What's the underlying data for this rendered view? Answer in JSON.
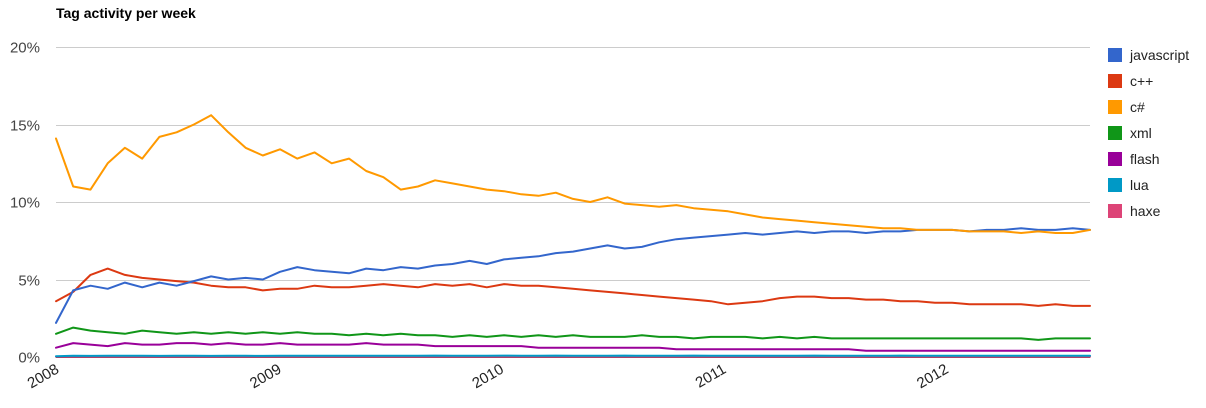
{
  "chart_data": {
    "type": "line",
    "title": "Tag activity per week",
    "xlabel": "",
    "ylabel": "",
    "x_start": "2008",
    "x_end": "2012.65",
    "xlim": [
      "2008",
      "2012.65"
    ],
    "ylim": [
      0,
      20
    ],
    "y_ticks": [
      0,
      5,
      10,
      15,
      20
    ],
    "y_tick_labels": [
      "0%",
      "5%",
      "10%",
      "15%",
      "20%"
    ],
    "x_ticks": [
      "2008",
      "2009",
      "2010",
      "2011",
      "2012"
    ],
    "x_tick_labels": [
      "2008",
      "2009",
      "2010",
      "2011",
      "2012"
    ],
    "grid": true,
    "legend_position": "right",
    "sample_step_weeks": 4,
    "series": [
      {
        "name": "javascript",
        "color": "#3366cc",
        "values": [
          2.2,
          4.3,
          4.6,
          4.4,
          4.8,
          4.5,
          4.8,
          4.6,
          4.9,
          5.2,
          5.0,
          5.1,
          5.0,
          5.5,
          5.8,
          5.6,
          5.5,
          5.4,
          5.7,
          5.6,
          5.8,
          5.7,
          5.9,
          6.0,
          6.2,
          6.0,
          6.3,
          6.4,
          6.5,
          6.7,
          6.8,
          7.0,
          7.2,
          7.0,
          7.1,
          7.4,
          7.6,
          7.7,
          7.8,
          7.9,
          8.0,
          7.9,
          8.0,
          8.1,
          8.0,
          8.1,
          8.1,
          8.0,
          8.1,
          8.1,
          8.2,
          8.2,
          8.2,
          8.1,
          8.2,
          8.2,
          8.3,
          8.2,
          8.2,
          8.3,
          8.2
        ]
      },
      {
        "name": "c++",
        "color": "#dc3912",
        "values": [
          3.6,
          4.2,
          5.3,
          5.7,
          5.3,
          5.1,
          5.0,
          4.9,
          4.8,
          4.6,
          4.5,
          4.5,
          4.3,
          4.4,
          4.4,
          4.6,
          4.5,
          4.5,
          4.6,
          4.7,
          4.6,
          4.5,
          4.7,
          4.6,
          4.7,
          4.5,
          4.7,
          4.6,
          4.6,
          4.5,
          4.4,
          4.3,
          4.2,
          4.1,
          4.0,
          3.9,
          3.8,
          3.7,
          3.6,
          3.4,
          3.5,
          3.6,
          3.8,
          3.9,
          3.9,
          3.8,
          3.8,
          3.7,
          3.7,
          3.6,
          3.6,
          3.5,
          3.5,
          3.4,
          3.4,
          3.4,
          3.4,
          3.3,
          3.4,
          3.3,
          3.3
        ]
      },
      {
        "name": "c#",
        "color": "#ff9900",
        "values": [
          14.1,
          11.0,
          10.8,
          12.5,
          13.5,
          12.8,
          14.2,
          14.5,
          15.0,
          15.6,
          14.5,
          13.5,
          13.0,
          13.4,
          12.8,
          13.2,
          12.5,
          12.8,
          12.0,
          11.6,
          10.8,
          11.0,
          11.4,
          11.2,
          11.0,
          10.8,
          10.7,
          10.5,
          10.4,
          10.6,
          10.2,
          10.0,
          10.3,
          9.9,
          9.8,
          9.7,
          9.8,
          9.6,
          9.5,
          9.4,
          9.2,
          9.0,
          8.9,
          8.8,
          8.7,
          8.6,
          8.5,
          8.4,
          8.3,
          8.3,
          8.2,
          8.2,
          8.2,
          8.1,
          8.1,
          8.1,
          8.0,
          8.1,
          8.0,
          8.0,
          8.2
        ]
      },
      {
        "name": "xml",
        "color": "#109618",
        "values": [
          1.5,
          1.9,
          1.7,
          1.6,
          1.5,
          1.7,
          1.6,
          1.5,
          1.6,
          1.5,
          1.6,
          1.5,
          1.6,
          1.5,
          1.6,
          1.5,
          1.5,
          1.4,
          1.5,
          1.4,
          1.5,
          1.4,
          1.4,
          1.3,
          1.4,
          1.3,
          1.4,
          1.3,
          1.4,
          1.3,
          1.4,
          1.3,
          1.3,
          1.3,
          1.4,
          1.3,
          1.3,
          1.2,
          1.3,
          1.3,
          1.3,
          1.2,
          1.3,
          1.2,
          1.3,
          1.2,
          1.2,
          1.2,
          1.2,
          1.2,
          1.2,
          1.2,
          1.2,
          1.2,
          1.2,
          1.2,
          1.2,
          1.1,
          1.2,
          1.2,
          1.2
        ]
      },
      {
        "name": "flash",
        "color": "#990099",
        "values": [
          0.6,
          0.9,
          0.8,
          0.7,
          0.9,
          0.8,
          0.8,
          0.9,
          0.9,
          0.8,
          0.9,
          0.8,
          0.8,
          0.9,
          0.8,
          0.8,
          0.8,
          0.8,
          0.9,
          0.8,
          0.8,
          0.8,
          0.7,
          0.7,
          0.7,
          0.7,
          0.7,
          0.7,
          0.6,
          0.6,
          0.6,
          0.6,
          0.6,
          0.6,
          0.6,
          0.6,
          0.5,
          0.5,
          0.5,
          0.5,
          0.5,
          0.5,
          0.5,
          0.5,
          0.5,
          0.5,
          0.5,
          0.4,
          0.4,
          0.4,
          0.4,
          0.4,
          0.4,
          0.4,
          0.4,
          0.4,
          0.4,
          0.4,
          0.4,
          0.4,
          0.4
        ]
      },
      {
        "name": "lua",
        "color": "#0099c6",
        "values": [
          0.05,
          0.08,
          0.07,
          0.08,
          0.08,
          0.08,
          0.07,
          0.08,
          0.08,
          0.07,
          0.08,
          0.08,
          0.07,
          0.08,
          0.08,
          0.08,
          0.08,
          0.08,
          0.08,
          0.08,
          0.08,
          0.08,
          0.09,
          0.08,
          0.08,
          0.08,
          0.09,
          0.08,
          0.08,
          0.09,
          0.08,
          0.08,
          0.08,
          0.09,
          0.08,
          0.08,
          0.08,
          0.09,
          0.08,
          0.08,
          0.08,
          0.08,
          0.08,
          0.08,
          0.09,
          0.08,
          0.08,
          0.08,
          0.08,
          0.09,
          0.08,
          0.08,
          0.08,
          0.08,
          0.08,
          0.08,
          0.08,
          0.08,
          0.08,
          0.08,
          0.08
        ]
      },
      {
        "name": "haxe",
        "color": "#dd4477",
        "values": [
          0.01,
          0.02,
          0.02,
          0.02,
          0.02,
          0.02,
          0.02,
          0.02,
          0.02,
          0.02,
          0.02,
          0.02,
          0.02,
          0.02,
          0.02,
          0.02,
          0.02,
          0.02,
          0.02,
          0.02,
          0.02,
          0.02,
          0.02,
          0.02,
          0.02,
          0.02,
          0.02,
          0.02,
          0.02,
          0.02,
          0.02,
          0.02,
          0.02,
          0.02,
          0.02,
          0.02,
          0.02,
          0.02,
          0.02,
          0.02,
          0.02,
          0.02,
          0.02,
          0.02,
          0.02,
          0.02,
          0.02,
          0.02,
          0.02,
          0.02,
          0.02,
          0.02,
          0.02,
          0.02,
          0.02,
          0.02,
          0.02,
          0.02,
          0.02,
          0.02,
          0.02
        ]
      }
    ]
  }
}
